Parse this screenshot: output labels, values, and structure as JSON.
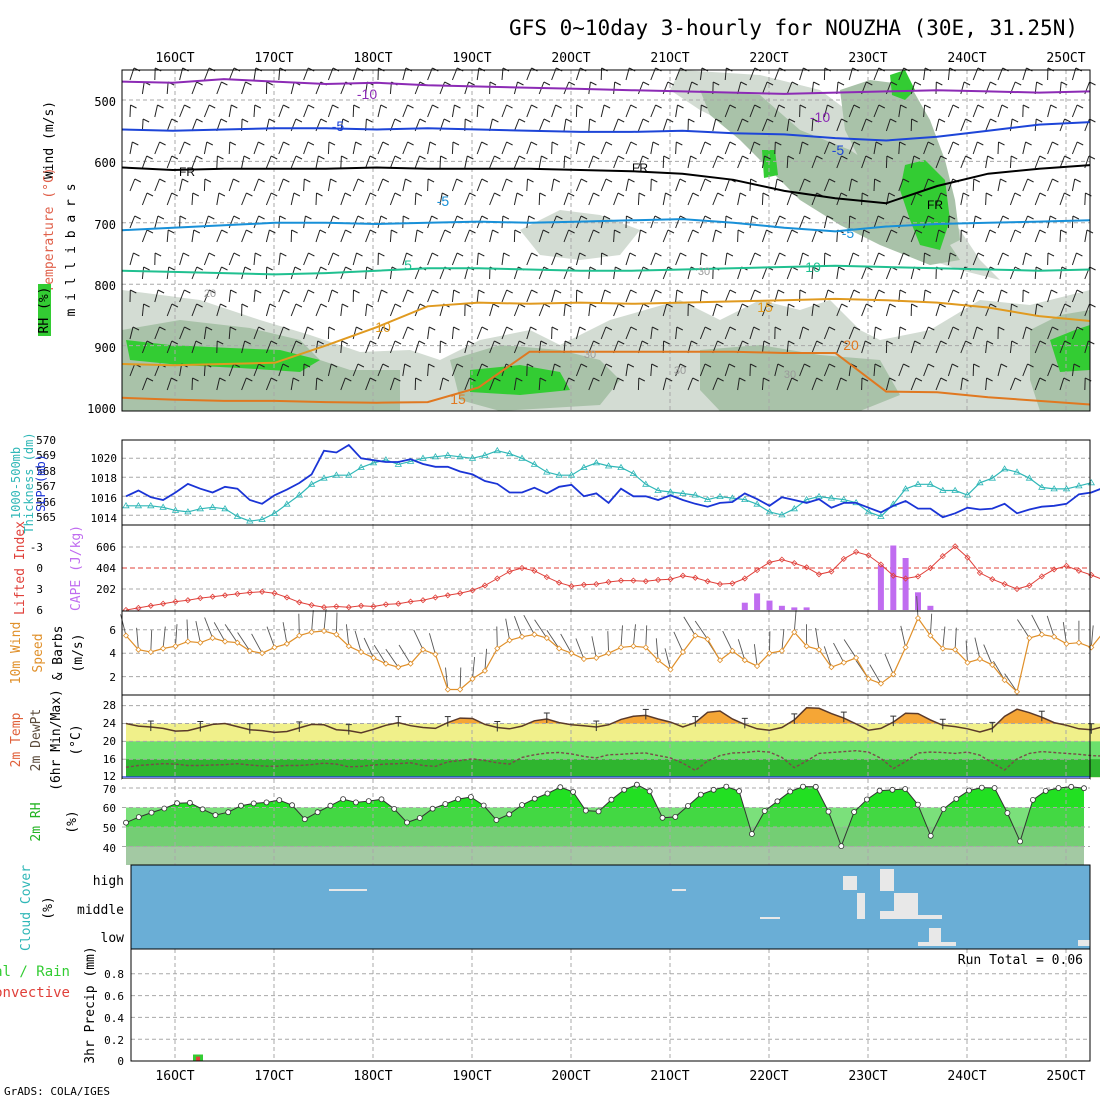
{
  "header": {
    "title": "GFS 0~10day 3-hourly for NOUZHA (30E, 31.25N)",
    "credit": "GrADS: COLA/IGES"
  },
  "time_axis": {
    "labels": [
      "16OCT",
      "17OCT",
      "18OCT",
      "19OCT",
      "20OCT",
      "21OCT",
      "22OCT",
      "23OCT",
      "24OCT",
      "25OCT"
    ]
  },
  "colors": {
    "grid": "#a8a8a8",
    "rh_fill_light": "#d3dcd3",
    "rh_fill_mid": "#a9c2a9",
    "rh_fill_green": "#33cc33",
    "slp_line": "#1a34d6",
    "thickness_line": "#2fb7b7",
    "lifted_index": "#e0403a",
    "cape_bars": "#c06cf0",
    "wind_speed": "#e0902a",
    "temp_fill": "#f0f08a",
    "temp_max_fill": "#f5a636",
    "dewpt_fill": "#33cc33",
    "rh2m_fill": "#22e022",
    "cloud_bg": "#6aaed6",
    "cloud_fill": "#e8e8e8",
    "precip_rain": "#33cc33",
    "precip_conv": "#e0403a"
  },
  "chart_data": [
    {
      "panel": "upper_air",
      "type": "heatmap",
      "ylabel_parts": [
        "RH (%)",
        "Temperature (°C)",
        "Wind (m/s)"
      ],
      "ylabel_unit": "m i l l i b a r s",
      "yticks": [
        "500",
        "600",
        "700",
        "800",
        "900",
        "1000"
      ],
      "contour_labels": [
        "-10",
        "-10",
        "-5",
        "-5",
        "-5",
        "-5",
        "FR",
        "FR",
        "FR",
        "5",
        "5",
        "10",
        "10",
        "15",
        "15",
        "20",
        "20",
        "20",
        "30",
        "30",
        "30",
        "30"
      ],
      "isotherms": [
        {
          "label": "-10",
          "p": [
            470,
            472,
            466,
            470,
            474,
            472,
            476,
            478,
            480,
            482,
            484,
            486,
            488,
            490,
            488,
            486,
            484,
            486,
            488,
            486
          ]
        },
        {
          "label": "-5",
          "p": [
            548,
            550,
            548,
            546,
            546,
            548,
            546,
            548,
            550,
            552,
            552,
            550,
            554,
            556,
            562,
            566,
            560,
            550,
            540,
            536
          ]
        },
        {
          "label": "FR",
          "p": [
            610,
            614,
            612,
            612,
            612,
            610,
            612,
            612,
            612,
            614,
            616,
            620,
            630,
            648,
            660,
            668,
            640,
            620,
            612,
            606
          ]
        },
        {
          "label": "5",
          "p": [
            712,
            708,
            704,
            700,
            700,
            702,
            700,
            698,
            700,
            698,
            696,
            694,
            700,
            708,
            714,
            706,
            702,
            700,
            698,
            696
          ]
        },
        {
          "label": "10",
          "p": [
            778,
            780,
            782,
            784,
            782,
            778,
            774,
            774,
            776,
            778,
            778,
            776,
            774,
            772,
            770,
            772,
            774,
            776,
            778,
            776
          ]
        },
        {
          "label": "15",
          "p": [
            930,
            932,
            930,
            928,
            900,
            870,
            836,
            830,
            832,
            830,
            832,
            830,
            828,
            826,
            824,
            826,
            830,
            838,
            852,
            860
          ]
        },
        {
          "label": "20",
          "p": [
            985,
            988,
            990,
            990,
            992,
            993,
            992,
            968,
            910,
            910,
            910,
            910,
            910,
            912,
            912,
            975,
            976,
            984,
            990,
            996
          ]
        }
      ]
    },
    {
      "panel": "slp_thickness",
      "type": "line",
      "ylabel": [
        "1000-500mb",
        "Thickness (dm)",
        "SLP (mb)"
      ],
      "left_ticks": [
        "565",
        "566",
        "567",
        "568",
        "569",
        "570"
      ],
      "right_ticks": [
        "1014",
        "1016",
        "1018",
        "1020"
      ],
      "series": [
        {
          "name": "SLP (mb)",
          "values": [
            1016.0,
            1016.6,
            1015.9,
            1015.6,
            1016.4,
            1017.3,
            1016.8,
            1016.4,
            1017.0,
            1016.8,
            1015.6,
            1015.2,
            1016.1,
            1016.7,
            1017.4,
            1018.3,
            1020.8,
            1020.6,
            1021.4,
            1020.0,
            1019.8,
            1019.6,
            1019.6,
            1019.9,
            1019.4,
            1019.1,
            1019.1,
            1018.6,
            1018.3,
            1017.6,
            1017.3,
            1016.4,
            1016.4,
            1016.9,
            1016.3,
            1017.0,
            1017.2,
            1016.0,
            1016.3,
            1015.3,
            1016.8,
            1016.0,
            1016.0,
            1015.6,
            1016.1,
            1015.6,
            1015.2,
            1014.9,
            1015.3,
            1015.4,
            1016.3,
            1015.7,
            1015.0,
            1015.9,
            1015.6,
            1015.3,
            1015.7,
            1014.8,
            1015.3,
            1015.3,
            1014.8,
            1014.3,
            1015.0,
            1015.5,
            1014.7,
            1014.7,
            1013.8,
            1014.2,
            1014.8,
            1014.6,
            1014.7,
            1015.2,
            1014.2,
            1014.6,
            1014.9,
            1015.0,
            1015.2,
            1016.2,
            1016.4,
            1016.9,
            1017.6
          ]
        },
        {
          "name": "1000-500mb Thickness (dm)",
          "values": [
            565.8,
            565.8,
            565.8,
            565.7,
            565.5,
            565.4,
            565.6,
            565.7,
            565.6,
            565.1,
            564.8,
            564.9,
            565.3,
            565.9,
            566.5,
            567.2,
            567.6,
            567.8,
            567.8,
            568.3,
            568.6,
            568.8,
            568.5,
            568.7,
            568.9,
            569.0,
            569.1,
            569.0,
            568.9,
            569.1,
            569.4,
            569.2,
            568.9,
            568.5,
            568.0,
            567.8,
            567.8,
            568.3,
            568.6,
            568.4,
            568.3,
            567.9,
            567.2,
            566.8,
            566.7,
            566.6,
            566.5,
            566.2,
            566.4,
            566.3,
            566.2,
            565.9,
            565.4,
            565.2,
            565.6,
            566.2,
            566.4,
            566.3,
            566.2,
            566.0,
            565.4,
            565.1,
            565.9,
            566.9,
            567.2,
            567.2,
            566.8,
            566.8,
            566.5,
            567.3,
            567.6,
            568.2,
            568.0,
            567.6,
            567.0,
            566.9,
            566.9,
            567.1,
            567.3
          ]
        }
      ]
    },
    {
      "panel": "cape_li",
      "type": "bar",
      "ylabel": [
        "Lifted Index",
        "CAPE (J/kg)"
      ],
      "left_ticks": [
        "-3",
        "0",
        "3",
        "6"
      ],
      "right_ticks": [
        "202",
        "404",
        "606"
      ],
      "series": [
        {
          "name": "Lifted Index",
          "values": [
            6.0,
            5.7,
            5.4,
            5.1,
            4.8,
            4.6,
            4.3,
            4.1,
            3.9,
            3.7,
            3.5,
            3.4,
            3.6,
            4.2,
            4.9,
            5.3,
            5.6,
            5.5,
            5.6,
            5.4,
            5.5,
            5.2,
            5.1,
            4.8,
            4.6,
            4.2,
            3.9,
            3.6,
            3.2,
            2.5,
            1.5,
            0.5,
            0.0,
            0.4,
            1.3,
            2.1,
            2.6,
            2.4,
            2.3,
            2.0,
            1.8,
            1.8,
            1.9,
            1.7,
            1.6,
            1.1,
            1.4,
            1.9,
            2.3,
            2.2,
            1.5,
            0.3,
            -0.8,
            -1.2,
            -0.7,
            -0.1,
            0.9,
            0.5,
            -1.3,
            -2.3,
            -1.8,
            -0.5,
            1.1,
            1.5,
            1.2,
            0.0,
            -1.7,
            -3.1,
            -1.5,
            0.7,
            1.6,
            2.3,
            3.0,
            2.5,
            1.2,
            0.2,
            -0.3,
            0.4,
            1.0,
            1.7,
            1.8
          ]
        },
        {
          "name": "CAPE (J/kg)",
          "values": [
            0,
            5,
            0,
            0,
            0,
            0,
            0,
            0,
            0,
            0,
            0,
            0,
            0,
            0,
            0,
            0,
            0,
            0,
            0,
            0,
            0,
            0,
            0,
            0,
            0,
            0,
            0,
            0,
            0,
            0,
            0,
            0,
            0,
            0,
            0,
            0,
            0,
            0,
            0,
            0,
            0,
            0,
            0,
            0,
            0,
            0,
            0,
            0,
            0,
            0,
            70,
            160,
            90,
            40,
            25,
            25,
            0,
            0,
            0,
            0,
            0,
            430,
            620,
            500,
            170,
            40,
            0,
            0,
            0,
            0,
            0,
            0,
            0,
            0,
            0,
            0,
            0,
            0,
            0,
            0,
            0,
            0
          ]
        }
      ]
    },
    {
      "panel": "wind_10m",
      "type": "line",
      "ylabel": [
        "10m Wind",
        "Speed",
        "& Barbs",
        "(m/s)"
      ],
      "left_ticks": [
        "2",
        "4",
        "6"
      ],
      "series": [
        {
          "name": "10m Wind Speed (m/s)",
          "values": [
            5.5,
            4.3,
            4.1,
            4.4,
            4.6,
            5.0,
            4.9,
            5.3,
            5.0,
            4.9,
            4.2,
            4.0,
            4.5,
            4.8,
            5.5,
            5.8,
            5.9,
            5.6,
            4.6,
            4.1,
            3.6,
            3.1,
            2.8,
            3.1,
            4.3,
            3.9,
            0.9,
            0.9,
            1.8,
            2.5,
            4.4,
            5.1,
            5.4,
            5.6,
            5.3,
            4.4,
            4.0,
            3.5,
            3.6,
            4.0,
            4.5,
            4.6,
            4.5,
            3.4,
            2.6,
            4.1,
            5.5,
            5.2,
            3.4,
            4.2,
            3.4,
            2.9,
            4.0,
            4.2,
            5.8,
            4.6,
            4.3,
            2.8,
            3.2,
            3.6,
            1.8,
            1.4,
            2.2,
            4.5,
            7.0,
            5.5,
            4.4,
            4.3,
            3.2,
            3.5,
            3.0,
            1.7,
            0.7,
            5.3,
            5.6,
            5.4,
            4.8,
            4.9,
            4.5,
            5.8,
            4.3
          ]
        }
      ]
    },
    {
      "panel": "temperature_2m",
      "type": "area",
      "ylabel": [
        "2m Temp",
        "2m DewPt",
        "(6hr Min/Max)",
        "(°C)"
      ],
      "left_ticks": [
        "12",
        "16",
        "20",
        "24",
        "28"
      ],
      "series": [
        {
          "name": "2m Temp",
          "values": [
            24.0,
            23.4,
            23.2,
            22.9,
            22.3,
            22.4,
            23.1,
            23.8,
            24.0,
            23.3,
            22.6,
            22.4,
            22.0,
            22.2,
            23.0,
            23.8,
            23.7,
            22.6,
            22.4,
            21.9,
            22.7,
            23.6,
            24.2,
            23.5,
            23.1,
            22.9,
            24.2,
            25.2,
            25.1,
            23.8,
            23.1,
            22.8,
            23.4,
            24.6,
            25.0,
            24.2,
            23.7,
            23.5,
            23.2,
            23.7,
            24.9,
            25.6,
            25.8,
            25.0,
            24.3,
            23.2,
            24.2,
            26.5,
            26.8,
            25.0,
            23.8,
            22.8,
            22.5,
            23.1,
            24.8,
            27.5,
            27.4,
            26.2,
            25.2,
            23.9,
            22.5,
            22.9,
            24.3,
            26.3,
            26.2,
            24.8,
            23.6,
            23.3,
            22.8,
            22.1,
            22.9,
            25.6,
            27.2,
            26.4,
            25.4,
            24.2,
            23.6,
            22.8,
            22.6,
            23.3
          ]
        },
        {
          "name": "2m DewPt",
          "values": [
            14.2,
            14.6,
            14.8,
            15.0,
            14.9,
            14.6,
            14.6,
            14.7,
            14.8,
            15.0,
            14.7,
            14.5,
            14.4,
            14.6,
            14.6,
            14.8,
            15.1,
            14.9,
            14.3,
            14.4,
            14.7,
            14.9,
            15.0,
            15.2,
            14.6,
            14.4,
            15.4,
            15.7,
            16.1,
            15.7,
            15.2,
            14.9,
            16.4,
            17.0,
            17.4,
            17.5,
            17.2,
            16.6,
            16.3,
            17.0,
            17.1,
            17.3,
            17.4,
            16.8,
            16.3,
            15.1,
            13.5,
            15.6,
            16.8,
            17.4,
            17.5,
            17.8,
            17.6,
            16.4,
            14.1,
            15.6,
            17.3,
            17.5,
            17.7,
            17.9,
            17.6,
            16.2,
            13.9,
            15.5,
            17.4,
            17.6,
            17.5,
            17.3,
            17.6,
            16.9,
            15.2,
            13.6,
            16.1,
            17.3,
            17.7,
            17.5,
            17.3,
            17.1,
            16.8,
            16.7
          ]
        }
      ]
    },
    {
      "panel": "rh_2m",
      "type": "area",
      "ylabel": [
        "2m RH",
        "(%)"
      ],
      "left_ticks": [
        "40",
        "50",
        "60",
        "70"
      ],
      "series": [
        {
          "name": "2m RH (%)",
          "values": [
            52.2,
            55.1,
            57.4,
            59.5,
            62.2,
            62.4,
            59.1,
            56.1,
            57.6,
            60.9,
            62.1,
            62.6,
            63.8,
            61.2,
            54.0,
            57.6,
            60.9,
            64.3,
            62.6,
            63.3,
            64.2,
            59.3,
            52.3,
            54.6,
            59.4,
            61.8,
            64.3,
            65.4,
            61.0,
            53.6,
            56.5,
            61.3,
            64.5,
            67.2,
            70.4,
            68.0,
            58.4,
            58.0,
            64.0,
            69.1,
            71.7,
            68.3,
            54.7,
            55.2,
            60.8,
            66.6,
            69.1,
            70.7,
            68.4,
            46.4,
            58.2,
            63.2,
            68.2,
            70.7,
            70.6,
            57.9,
            40.2,
            57.7,
            64.1,
            68.6,
            69.1,
            69.5,
            61.5,
            45.5,
            59.2,
            64.4,
            68.7,
            70.2,
            70.0,
            57.2,
            42.6,
            63.9,
            68.5,
            70.0,
            70.6,
            69.9
          ]
        }
      ]
    },
    {
      "panel": "cloud_cover",
      "type": "heatmap",
      "ylabel": [
        "Cloud Cover",
        "(%)"
      ],
      "levels": [
        "high",
        "middle",
        "low"
      ]
    },
    {
      "panel": "precip",
      "type": "bar",
      "ylabel": [
        "Total / Rain",
        "Convective",
        "3hr Precip (mm)"
      ],
      "left_ticks": [
        "0",
        "0.2",
        "0.4",
        "0.6",
        "0.8"
      ],
      "run_total_label": "Run Total = 0.06",
      "series": [
        {
          "name": "Total / Rain",
          "values": [
            0.06
          ]
        },
        {
          "name": "Convective",
          "values": [
            0.04
          ]
        }
      ]
    }
  ]
}
